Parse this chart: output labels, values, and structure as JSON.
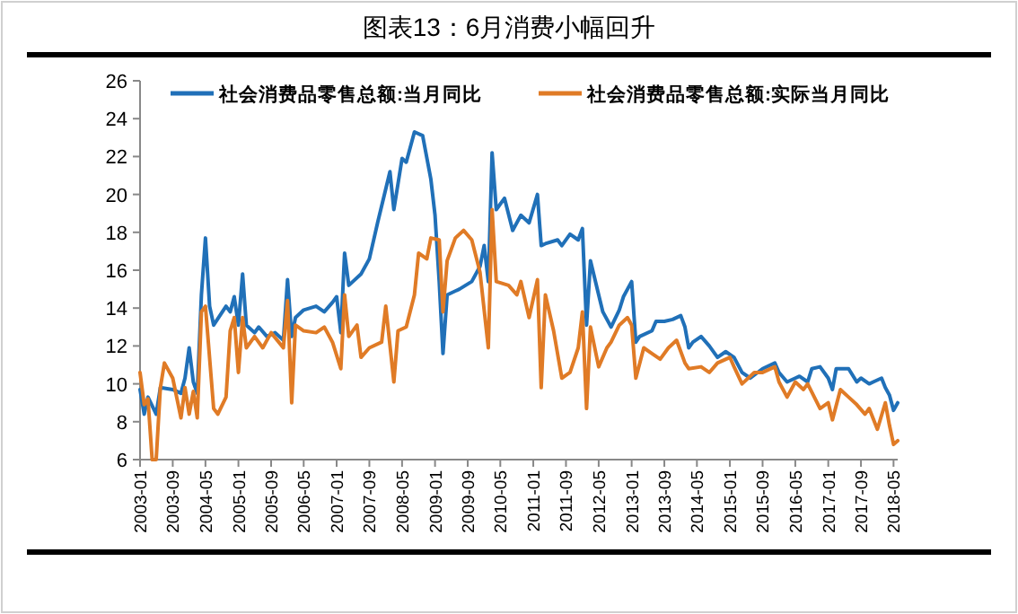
{
  "chart_data": {
    "type": "line",
    "title": "图表13：6月消费小幅回升",
    "legend": "top",
    "xlim": [
      "2003-01",
      "2018-06"
    ],
    "ylim": [
      6,
      26
    ],
    "yticks": [
      6,
      8,
      10,
      12,
      14,
      16,
      18,
      20,
      22,
      24,
      26
    ],
    "xticks": [
      "2003-01",
      "2003-09",
      "2004-05",
      "2005-01",
      "2005-09",
      "2006-05",
      "2007-01",
      "2007-09",
      "2008-05",
      "2009-01",
      "2009-09",
      "2010-05",
      "2011-01",
      "2011-09",
      "2012-05",
      "2013-01",
      "2013-09",
      "2014-05",
      "2015-01",
      "2015-09",
      "2016-05",
      "2017-01",
      "2017-09",
      "2018-05"
    ],
    "series": [
      {
        "name": "社会消费品零售总额:当月同比",
        "color": "#2070b8",
        "x": [
          "2003-01",
          "2003-02",
          "2003-03",
          "2003-05",
          "2003-06",
          "2003-09",
          "2003-11",
          "2003-12",
          "2004-01",
          "2004-02",
          "2004-03",
          "2004-04",
          "2004-05",
          "2004-06",
          "2004-07",
          "2004-10",
          "2004-11",
          "2004-12",
          "2005-01",
          "2005-02",
          "2005-03",
          "2005-05",
          "2005-06",
          "2005-08",
          "2005-10",
          "2005-12",
          "2006-01",
          "2006-02",
          "2006-03",
          "2006-05",
          "2006-08",
          "2006-10",
          "2006-12",
          "2007-01",
          "2007-02",
          "2007-03",
          "2007-04",
          "2007-07",
          "2007-09",
          "2007-11",
          "2008-02",
          "2008-03",
          "2008-05",
          "2008-06",
          "2008-08",
          "2008-10",
          "2008-12",
          "2009-01",
          "2009-02",
          "2009-03",
          "2009-04",
          "2009-07",
          "2009-10",
          "2009-12",
          "2010-01",
          "2010-02",
          "2010-03",
          "2010-04",
          "2010-06",
          "2010-08",
          "2010-10",
          "2010-12",
          "2011-02",
          "2011-03",
          "2011-04",
          "2011-07",
          "2011-08",
          "2011-10",
          "2011-12",
          "2012-01",
          "2012-02",
          "2012-03",
          "2012-05",
          "2012-06",
          "2012-08",
          "2012-10",
          "2012-11",
          "2013-01",
          "2013-02",
          "2013-03",
          "2013-06",
          "2013-07",
          "2013-09",
          "2013-11",
          "2014-01",
          "2014-02",
          "2014-03",
          "2014-04",
          "2014-06",
          "2014-08",
          "2014-10",
          "2014-12",
          "2015-02",
          "2015-04",
          "2015-06",
          "2015-09",
          "2015-12",
          "2016-01",
          "2016-03",
          "2016-05",
          "2016-06",
          "2016-08",
          "2016-09",
          "2016-11",
          "2017-01",
          "2017-02",
          "2017-03",
          "2017-06",
          "2017-08",
          "2017-09",
          "2017-11",
          "2017-12",
          "2018-02",
          "2018-03",
          "2018-04",
          "2018-05",
          "2018-06"
        ],
        "values": [
          9.7,
          8.4,
          9.3,
          8.4,
          9.8,
          9.7,
          9.5,
          10.3,
          11.9,
          10.1,
          9.5,
          14.7,
          17.7,
          14.1,
          13.1,
          14.1,
          13.8,
          14.6,
          13.1,
          15.8,
          13.1,
          12.7,
          13.0,
          12.5,
          12.7,
          12.3,
          15.5,
          12.5,
          13.5,
          13.9,
          14.1,
          13.8,
          14.3,
          14.6,
          12.7,
          16.9,
          15.2,
          15.8,
          16.6,
          18.5,
          21.2,
          19.2,
          21.9,
          21.7,
          23.3,
          23.1,
          20.8,
          18.9,
          15.4,
          11.6,
          14.7,
          15.0,
          15.4,
          16.2,
          17.3,
          15.4,
          22.2,
          19.2,
          19.8,
          18.1,
          18.9,
          18.5,
          20.0,
          17.3,
          17.4,
          17.6,
          17.3,
          17.9,
          17.6,
          18.2,
          13.1,
          16.5,
          14.7,
          13.8,
          13.0,
          13.9,
          14.6,
          15.4,
          12.2,
          12.5,
          12.8,
          13.3,
          13.3,
          13.4,
          13.6,
          13.0,
          11.9,
          12.2,
          12.5,
          12.0,
          11.4,
          11.7,
          11.4,
          10.6,
          10.3,
          10.8,
          11.1,
          10.6,
          10.1,
          10.3,
          10.4,
          10.1,
          10.8,
          10.9,
          10.3,
          9.7,
          10.8,
          10.8,
          10.1,
          10.3,
          10.0,
          10.1,
          10.3,
          9.8,
          9.4,
          8.6,
          9.0
        ]
      },
      {
        "name": "社会消费品零售总额:实际当月同比",
        "color": "#e07b26",
        "x": [
          "2003-01",
          "2003-02",
          "2003-03",
          "2003-04",
          "2003-05",
          "2003-06",
          "2003-07",
          "2003-09",
          "2003-11",
          "2003-12",
          "2004-01",
          "2004-02",
          "2004-03",
          "2004-04",
          "2004-05",
          "2004-07",
          "2004-08",
          "2004-10",
          "2004-11",
          "2004-12",
          "2005-01",
          "2005-02",
          "2005-03",
          "2005-05",
          "2005-07",
          "2005-09",
          "2005-12",
          "2006-01",
          "2006-02",
          "2006-03",
          "2006-05",
          "2006-08",
          "2006-10",
          "2006-12",
          "2007-02",
          "2007-03",
          "2007-04",
          "2007-06",
          "2007-07",
          "2007-09",
          "2007-12",
          "2008-01",
          "2008-03",
          "2008-04",
          "2008-06",
          "2008-08",
          "2008-09",
          "2008-11",
          "2008-12",
          "2009-02",
          "2009-03",
          "2009-04",
          "2009-06",
          "2009-08",
          "2009-10",
          "2009-12",
          "2010-02",
          "2010-03",
          "2010-04",
          "2010-07",
          "2010-09",
          "2010-10",
          "2010-12",
          "2011-02",
          "2011-03",
          "2011-04",
          "2011-06",
          "2011-08",
          "2011-10",
          "2011-12",
          "2012-01",
          "2012-02",
          "2012-03",
          "2012-05",
          "2012-07",
          "2012-08",
          "2012-10",
          "2012-12",
          "2013-01",
          "2013-02",
          "2013-04",
          "2013-06",
          "2013-08",
          "2013-10",
          "2013-12",
          "2014-02",
          "2014-03",
          "2014-06",
          "2014-08",
          "2014-10",
          "2015-01",
          "2015-02",
          "2015-04",
          "2015-07",
          "2015-09",
          "2015-12",
          "2016-01",
          "2016-03",
          "2016-05",
          "2016-07",
          "2016-08",
          "2016-11",
          "2017-01",
          "2017-02",
          "2017-04",
          "2017-06",
          "2017-08",
          "2017-10",
          "2017-11",
          "2018-01",
          "2018-03",
          "2018-04",
          "2018-05",
          "2018-06"
        ],
        "values": [
          10.6,
          8.9,
          9.2,
          6.0,
          6.0,
          9.8,
          11.1,
          10.3,
          8.2,
          9.8,
          8.4,
          9.6,
          8.2,
          13.8,
          14.1,
          8.7,
          8.4,
          9.3,
          12.8,
          13.5,
          10.6,
          13.5,
          11.9,
          12.5,
          11.9,
          12.7,
          11.9,
          14.4,
          9.0,
          13.1,
          12.8,
          12.7,
          13.0,
          12.2,
          10.8,
          14.7,
          12.5,
          13.1,
          11.4,
          11.9,
          12.2,
          14.1,
          10.1,
          12.8,
          13.0,
          14.7,
          16.9,
          16.6,
          17.7,
          17.6,
          13.8,
          16.5,
          17.7,
          18.1,
          17.6,
          15.9,
          11.9,
          19.2,
          15.4,
          15.2,
          14.7,
          15.4,
          13.5,
          15.5,
          9.8,
          14.7,
          12.8,
          10.3,
          10.6,
          11.9,
          13.8,
          8.7,
          13.0,
          10.9,
          11.9,
          12.2,
          13.1,
          13.5,
          13.1,
          10.3,
          11.9,
          11.6,
          11.3,
          11.9,
          12.3,
          11.1,
          10.8,
          10.9,
          10.6,
          11.1,
          11.4,
          10.9,
          10.0,
          10.6,
          10.6,
          10.9,
          10.1,
          9.3,
          10.1,
          9.7,
          10.0,
          8.7,
          9.0,
          8.1,
          9.7,
          9.3,
          8.9,
          8.4,
          8.7,
          7.6,
          9.0,
          7.8,
          6.8,
          7.0
        ]
      }
    ]
  }
}
